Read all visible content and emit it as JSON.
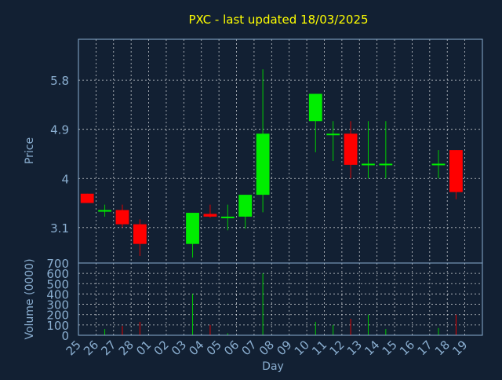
{
  "chart_data": [
    {
      "type": "candlestick",
      "title": "PXC - last updated 18/03/2025",
      "ylabel": "Price",
      "ylim": [
        2.45,
        6.55
      ],
      "yticks": [
        3.1,
        4,
        4.9,
        5.8
      ],
      "ytick_labels": [
        "3.1",
        "4",
        "4.9",
        "5.8"
      ],
      "grid": true,
      "colors": {
        "up": "#00ee00",
        "down": "#ff0000",
        "wick_up": "#00cc00",
        "wick_down": "#dd0000",
        "title": "#ffff00",
        "axis_text": "#8aaed0",
        "grid": "#ffffff",
        "background": "#122033"
      },
      "candles": [
        {
          "day": "25",
          "open": 3.72,
          "high": 3.72,
          "low": 3.55,
          "close": 3.55
        },
        {
          "day": "26",
          "open": 3.4,
          "high": 3.52,
          "low": 3.3,
          "close": 3.42
        },
        {
          "day": "27",
          "open": 3.42,
          "high": 3.52,
          "low": 3.1,
          "close": 3.16
        },
        {
          "day": "28",
          "open": 3.16,
          "high": 3.25,
          "low": 2.58,
          "close": 2.8
        },
        {
          "day": "03",
          "open": 2.8,
          "high": 3.37,
          "low": 2.55,
          "close": 3.37
        },
        {
          "day": "04",
          "open": 3.35,
          "high": 3.52,
          "low": 3.28,
          "close": 3.3
        },
        {
          "day": "05",
          "open": 3.28,
          "high": 3.52,
          "low": 3.05,
          "close": 3.3
        },
        {
          "day": "06",
          "open": 3.3,
          "high": 3.7,
          "low": 3.08,
          "close": 3.7
        },
        {
          "day": "07",
          "open": 3.7,
          "high": 6.0,
          "low": 3.38,
          "close": 4.82
        },
        {
          "day": "10",
          "open": 5.05,
          "high": 5.55,
          "low": 4.48,
          "close": 5.55
        },
        {
          "day": "11",
          "open": 4.82,
          "high": 5.05,
          "low": 4.32,
          "close": 4.82
        },
        {
          "day": "12",
          "open": 4.82,
          "high": 5.05,
          "low": 4.0,
          "close": 4.25
        },
        {
          "day": "13",
          "open": 4.25,
          "high": 5.05,
          "low": 4.0,
          "close": 4.27
        },
        {
          "day": "14",
          "open": 4.25,
          "high": 5.05,
          "low": 4.0,
          "close": 4.27
        },
        {
          "day": "17",
          "open": 4.25,
          "high": 4.52,
          "low": 4.0,
          "close": 4.27
        },
        {
          "day": "18",
          "open": 4.52,
          "high": 4.52,
          "low": 3.62,
          "close": 3.75
        }
      ]
    },
    {
      "type": "bar",
      "ylabel": "Volume (0000)",
      "xlabel": "Day",
      "ylim": [
        0,
        700
      ],
      "yticks": [
        0,
        100,
        200,
        300,
        400,
        500,
        600,
        700
      ],
      "categories": [
        "25",
        "26",
        "27",
        "28",
        "01",
        "02",
        "03",
        "04",
        "05",
        "06",
        "07",
        "08",
        "09",
        "10",
        "11",
        "12",
        "13",
        "14",
        "15",
        "16",
        "17",
        "18",
        "19"
      ],
      "bars": [
        {
          "day": "26",
          "value": 60,
          "direction": "up"
        },
        {
          "day": "27",
          "value": 90,
          "direction": "down"
        },
        {
          "day": "28",
          "value": 130,
          "direction": "down"
        },
        {
          "day": "03",
          "value": 400,
          "direction": "up"
        },
        {
          "day": "04",
          "value": 100,
          "direction": "down"
        },
        {
          "day": "05",
          "value": 20,
          "direction": "up"
        },
        {
          "day": "07",
          "value": 600,
          "direction": "up"
        },
        {
          "day": "10",
          "value": 130,
          "direction": "up"
        },
        {
          "day": "11",
          "value": 100,
          "direction": "up"
        },
        {
          "day": "12",
          "value": 160,
          "direction": "down"
        },
        {
          "day": "13",
          "value": 200,
          "direction": "up"
        },
        {
          "day": "14",
          "value": 60,
          "direction": "up"
        },
        {
          "day": "17",
          "value": 70,
          "direction": "up"
        },
        {
          "day": "18",
          "value": 200,
          "direction": "down"
        }
      ]
    }
  ]
}
